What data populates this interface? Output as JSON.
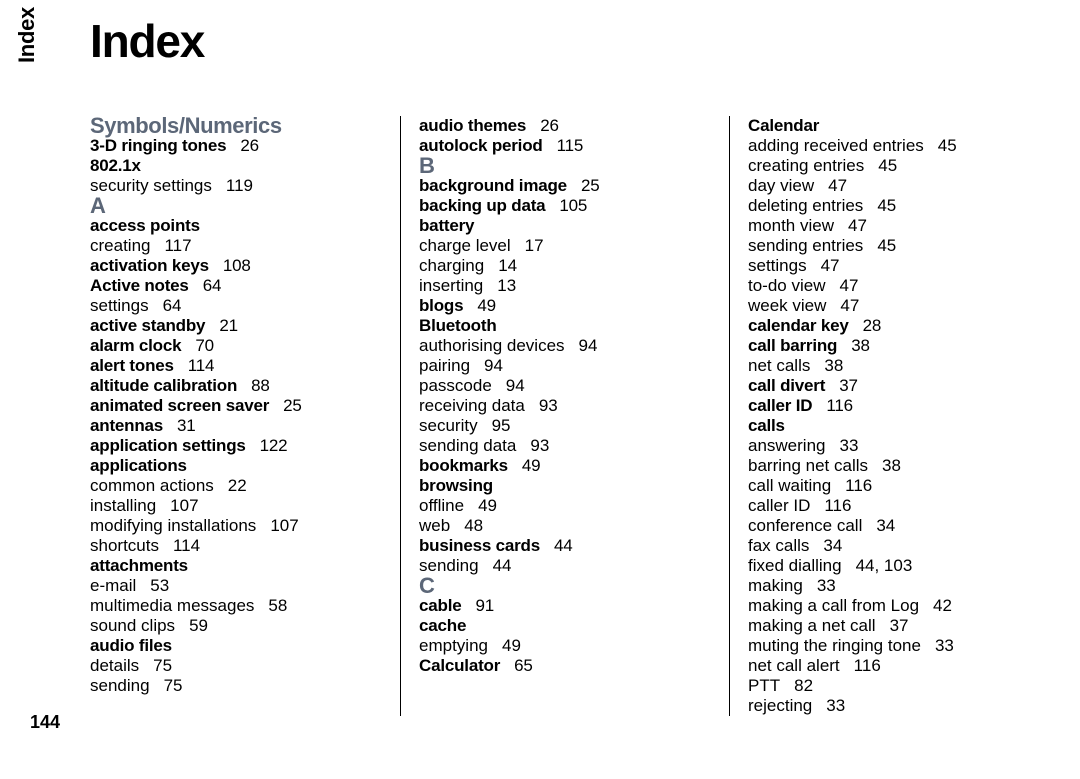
{
  "sidebar_label": "Index",
  "page_title": "Index",
  "page_number": "144",
  "section_color": "#5c6778",
  "columns": [
    {
      "items": [
        {
          "type": "section",
          "text": "Symbols/Numerics"
        },
        {
          "type": "main",
          "text": "3-D ringing tones",
          "page": "26"
        },
        {
          "type": "main",
          "text": "802.1x"
        },
        {
          "type": "sub",
          "text": "security settings",
          "page": "119"
        },
        {
          "type": "letter",
          "text": "A"
        },
        {
          "type": "main",
          "text": "access points"
        },
        {
          "type": "sub",
          "text": "creating",
          "page": "117"
        },
        {
          "type": "main",
          "text": "activation keys",
          "page": "108"
        },
        {
          "type": "main",
          "text": "Active notes",
          "page": "64"
        },
        {
          "type": "sub",
          "text": "settings",
          "page": "64"
        },
        {
          "type": "main",
          "text": "active standby",
          "page": "21"
        },
        {
          "type": "main",
          "text": "alarm clock",
          "page": "70"
        },
        {
          "type": "main",
          "text": "alert tones",
          "page": "114"
        },
        {
          "type": "main",
          "text": "altitude calibration",
          "page": "88"
        },
        {
          "type": "main",
          "text": "animated screen saver",
          "page": "25"
        },
        {
          "type": "main",
          "text": "antennas",
          "page": "31"
        },
        {
          "type": "main",
          "text": "application settings",
          "page": "122"
        },
        {
          "type": "main",
          "text": "applications"
        },
        {
          "type": "sub",
          "text": "common actions",
          "page": "22"
        },
        {
          "type": "sub",
          "text": "installing",
          "page": "107"
        },
        {
          "type": "sub",
          "text": "modifying installations",
          "page": "107"
        },
        {
          "type": "sub",
          "text": "shortcuts",
          "page": "114"
        },
        {
          "type": "main",
          "text": "attachments"
        },
        {
          "type": "sub",
          "text": "e-mail",
          "page": "53"
        },
        {
          "type": "sub",
          "text": "multimedia messages",
          "page": "58"
        },
        {
          "type": "sub",
          "text": "sound clips",
          "page": "59"
        },
        {
          "type": "main",
          "text": "audio files"
        },
        {
          "type": "sub",
          "text": "details",
          "page": "75"
        },
        {
          "type": "sub",
          "text": "sending",
          "page": "75"
        }
      ]
    },
    {
      "items": [
        {
          "type": "main",
          "text": "audio themes",
          "page": "26"
        },
        {
          "type": "main",
          "text": "autolock period",
          "page": "115"
        },
        {
          "type": "letter",
          "text": "B"
        },
        {
          "type": "main",
          "text": "background image",
          "page": "25"
        },
        {
          "type": "main",
          "text": "backing up data",
          "page": "105"
        },
        {
          "type": "main",
          "text": "battery"
        },
        {
          "type": "sub",
          "text": "charge level",
          "page": "17"
        },
        {
          "type": "sub",
          "text": "charging",
          "page": "14"
        },
        {
          "type": "sub",
          "text": "inserting",
          "page": "13"
        },
        {
          "type": "main",
          "text": "blogs",
          "page": "49"
        },
        {
          "type": "main",
          "text": "Bluetooth"
        },
        {
          "type": "sub",
          "text": "authorising devices",
          "page": "94"
        },
        {
          "type": "sub",
          "text": "pairing",
          "page": "94"
        },
        {
          "type": "sub",
          "text": "passcode",
          "page": "94"
        },
        {
          "type": "sub",
          "text": "receiving data",
          "page": "93"
        },
        {
          "type": "sub",
          "text": "security",
          "page": "95"
        },
        {
          "type": "sub",
          "text": "sending data",
          "page": "93"
        },
        {
          "type": "main",
          "text": "bookmarks",
          "page": "49"
        },
        {
          "type": "main",
          "text": "browsing"
        },
        {
          "type": "sub",
          "text": "offline",
          "page": "49"
        },
        {
          "type": "sub",
          "text": "web",
          "page": "48"
        },
        {
          "type": "main",
          "text": "business cards",
          "page": "44"
        },
        {
          "type": "sub",
          "text": "sending",
          "page": "44"
        },
        {
          "type": "letter",
          "text": "C"
        },
        {
          "type": "main",
          "text": "cable",
          "page": "91"
        },
        {
          "type": "main",
          "text": "cache"
        },
        {
          "type": "sub",
          "text": "emptying",
          "page": "49"
        },
        {
          "type": "main",
          "text": "Calculator",
          "page": "65"
        }
      ]
    },
    {
      "items": [
        {
          "type": "main",
          "text": "Calendar"
        },
        {
          "type": "sub",
          "text": "adding received entries",
          "page": "45"
        },
        {
          "type": "sub",
          "text": "creating entries",
          "page": "45"
        },
        {
          "type": "sub",
          "text": "day view",
          "page": "47"
        },
        {
          "type": "sub",
          "text": "deleting entries",
          "page": "45"
        },
        {
          "type": "sub",
          "text": "month view",
          "page": "47"
        },
        {
          "type": "sub",
          "text": "sending entries",
          "page": "45"
        },
        {
          "type": "sub",
          "text": "settings",
          "page": "47"
        },
        {
          "type": "sub",
          "text": "to-do view",
          "page": "47"
        },
        {
          "type": "sub",
          "text": "week view",
          "page": "47"
        },
        {
          "type": "main",
          "text": "calendar key",
          "page": "28"
        },
        {
          "type": "main",
          "text": "call barring",
          "page": "38"
        },
        {
          "type": "sub",
          "text": "net calls",
          "page": "38"
        },
        {
          "type": "main",
          "text": "call divert",
          "page": "37"
        },
        {
          "type": "main",
          "text": "caller ID",
          "page": "116"
        },
        {
          "type": "main",
          "text": "calls"
        },
        {
          "type": "sub",
          "text": "answering",
          "page": "33"
        },
        {
          "type": "sub",
          "text": "barring net calls",
          "page": "38"
        },
        {
          "type": "sub",
          "text": "call waiting",
          "page": "116"
        },
        {
          "type": "sub",
          "text": "caller ID",
          "page": "116"
        },
        {
          "type": "sub",
          "text": "conference call",
          "page": "34"
        },
        {
          "type": "sub",
          "text": "fax calls",
          "page": "34"
        },
        {
          "type": "sub",
          "text": "fixed dialling",
          "page": "44, 103"
        },
        {
          "type": "sub",
          "text": "making",
          "page": "33"
        },
        {
          "type": "sub",
          "text": "making a call from Log",
          "page": "42"
        },
        {
          "type": "sub",
          "text": "making a net call",
          "page": "37"
        },
        {
          "type": "sub",
          "text": "muting the ringing tone",
          "page": "33"
        },
        {
          "type": "sub",
          "text": "net call alert",
          "page": "116"
        },
        {
          "type": "sub",
          "text": "PTT",
          "page": "82"
        },
        {
          "type": "sub",
          "text": "rejecting",
          "page": "33"
        }
      ]
    }
  ]
}
